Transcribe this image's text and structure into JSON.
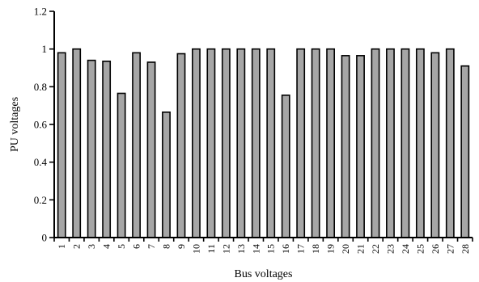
{
  "chart_data": {
    "type": "bar",
    "xlabel": "Bus voltages",
    "ylabel": "PU voltages",
    "ylim": [
      0,
      1.2
    ],
    "yticks": [
      0,
      0.2,
      0.4,
      0.6,
      0.8,
      1,
      1.2
    ],
    "ytick_labels": [
      "0",
      "0.2",
      "0.4",
      "0.6",
      "0.8",
      "1",
      "1.2"
    ],
    "categories": [
      "1",
      "2",
      "3",
      "4",
      "5",
      "6",
      "7",
      "8",
      "9",
      "10",
      "11",
      "12",
      "13",
      "14",
      "15",
      "16",
      "17",
      "18",
      "19",
      "20",
      "21",
      "22",
      "23",
      "24",
      "25",
      "26",
      "27",
      "28"
    ],
    "values": [
      0.98,
      1.0,
      0.94,
      0.935,
      0.765,
      0.98,
      0.93,
      0.665,
      0.975,
      1.0,
      1.0,
      1.0,
      1.0,
      1.0,
      1.0,
      0.755,
      1.0,
      1.0,
      1.0,
      0.965,
      0.965,
      1.0,
      1.0,
      1.0,
      1.0,
      0.98,
      1.0,
      0.91
    ],
    "bar_color": "#a6a6a6",
    "edge_color": "#000000",
    "grid": false,
    "legend": "none"
  }
}
